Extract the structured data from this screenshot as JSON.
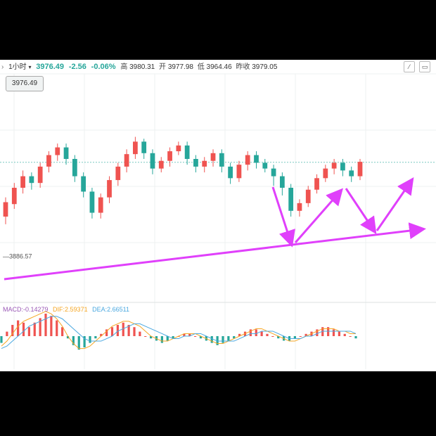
{
  "header": {
    "period_label": "1小时",
    "period_chevron": "▾",
    "last_price": "3976.49",
    "change": "-2.56",
    "change_pct": "-0.06%",
    "high_label": "高",
    "high_value": "3980.31",
    "open_label": "开",
    "open_value": "3977.98",
    "low_label": "低",
    "low_value": "3964.46",
    "prev_close_label": "昨收",
    "prev_close_value": "3979.05"
  },
  "price_box": "3976.49",
  "low_marker": "3886.57",
  "macd_legend": {
    "macd": "MACD:-0.14279",
    "dif": "DIF:2.59371",
    "dea": "DEA:2.66511"
  },
  "colors": {
    "up": "#ef5350",
    "down": "#26a69a",
    "annotation": "#e040fb",
    "dif": "#f5a623",
    "dea": "#4aa8e0"
  },
  "chart_data": [
    {
      "type": "candlestick",
      "title": "",
      "xlabel": "",
      "ylabel": "",
      "ylim": [
        3860,
        4010
      ],
      "price_marker": 3976.49,
      "low_marker": 3886.57,
      "candles": [
        [
          3920,
          3935,
          3912,
          3940
        ],
        [
          3933,
          3950,
          3928,
          3955
        ],
        [
          3950,
          3962,
          3944,
          3968
        ],
        [
          3962,
          3955,
          3948,
          3966
        ],
        [
          3955,
          3972,
          3950,
          3976
        ],
        [
          3972,
          3984,
          3966,
          3988
        ],
        [
          3984,
          3992,
          3978,
          3996
        ],
        [
          3992,
          3980,
          3974,
          3996
        ],
        [
          3980,
          3962,
          3956,
          3984
        ],
        [
          3962,
          3946,
          3940,
          3966
        ],
        [
          3946,
          3924,
          3918,
          3950
        ],
        [
          3924,
          3940,
          3918,
          3944
        ],
        [
          3940,
          3958,
          3934,
          3962
        ],
        [
          3958,
          3972,
          3952,
          3976
        ],
        [
          3972,
          3985,
          3966,
          3990
        ],
        [
          3985,
          3998,
          3980,
          4003
        ],
        [
          3998,
          3986,
          3980,
          4001
        ],
        [
          3986,
          3970,
          3964,
          3990
        ],
        [
          3970,
          3978,
          3966,
          3982
        ],
        [
          3978,
          3988,
          3972,
          3992
        ],
        [
          3988,
          3994,
          3984,
          3998
        ],
        [
          3994,
          3980,
          3974,
          3998
        ],
        [
          3980,
          3972,
          3966,
          3984
        ],
        [
          3972,
          3978,
          3966,
          3982
        ],
        [
          3978,
          3986,
          3972,
          3990
        ],
        [
          3986,
          3972,
          3966,
          3990
        ],
        [
          3972,
          3960,
          3954,
          3976
        ],
        [
          3960,
          3974,
          3956,
          3978
        ],
        [
          3974,
          3984,
          3968,
          3988
        ],
        [
          3984,
          3976,
          3970,
          3988
        ],
        [
          3976,
          3970,
          3966,
          3980
        ],
        [
          3970,
          3962,
          3952,
          3974
        ],
        [
          3962,
          3950,
          3942,
          3966
        ],
        [
          3950,
          3926,
          3920,
          3954
        ],
        [
          3926,
          3934,
          3920,
          3938
        ],
        [
          3934,
          3948,
          3930,
          3952
        ],
        [
          3948,
          3960,
          3944,
          3964
        ],
        [
          3960,
          3970,
          3956,
          3974
        ],
        [
          3970,
          3976,
          3964,
          3980
        ],
        [
          3976,
          3968,
          3962,
          3980
        ],
        [
          3968,
          3962,
          3956,
          3972
        ],
        [
          3962,
          3977,
          3958,
          3980
        ]
      ]
    },
    {
      "type": "bar",
      "title": "MACD",
      "series": [
        {
          "name": "MACD",
          "values": [
            -3,
            2,
            5,
            7,
            6,
            4,
            6,
            8,
            10,
            9,
            7,
            4,
            -1,
            -4,
            -6,
            -5,
            -3,
            -1,
            1,
            3,
            4,
            5,
            6,
            5,
            4,
            2,
            0,
            -1,
            -2,
            -3,
            -2,
            -1,
            0,
            1,
            1,
            0,
            -1,
            -2,
            -3,
            -4,
            -3,
            -2,
            -1,
            1,
            2,
            3,
            3,
            2,
            1,
            0,
            -1,
            -2,
            -2,
            -1,
            0,
            1,
            2,
            3,
            4,
            4,
            3,
            2,
            1,
            0,
            -1
          ]
        },
        {
          "name": "DIF",
          "values": [
            -4,
            -2,
            1,
            4,
            6,
            7,
            8,
            9,
            10,
            9,
            7,
            4,
            0,
            -3,
            -5,
            -5,
            -4,
            -2,
            0,
            2,
            4,
            5,
            6,
            6,
            5,
            4,
            2,
            0,
            -1,
            -2,
            -2,
            -1,
            0,
            1,
            1,
            1,
            0,
            -1,
            -2,
            -3,
            -3,
            -2,
            -1,
            0,
            1,
            2,
            3,
            3,
            2,
            1,
            0,
            -1,
            -2,
            -2,
            -1,
            0,
            1,
            2,
            3,
            3,
            3,
            2,
            2,
            1,
            1
          ]
        },
        {
          "name": "DEA",
          "values": [
            -5,
            -4,
            -2,
            0,
            2,
            4,
            5,
            6,
            7,
            8,
            8,
            7,
            5,
            3,
            1,
            -1,
            -2,
            -2,
            -2,
            -1,
            0,
            2,
            3,
            4,
            5,
            5,
            4,
            3,
            2,
            1,
            0,
            -1,
            -1,
            0,
            0,
            1,
            1,
            0,
            -1,
            -2,
            -2,
            -2,
            -2,
            -1,
            0,
            1,
            1,
            2,
            2,
            2,
            1,
            0,
            -1,
            -1,
            -1,
            0,
            0,
            1,
            2,
            2,
            2,
            2,
            2,
            2,
            1
          ]
        }
      ]
    }
  ]
}
